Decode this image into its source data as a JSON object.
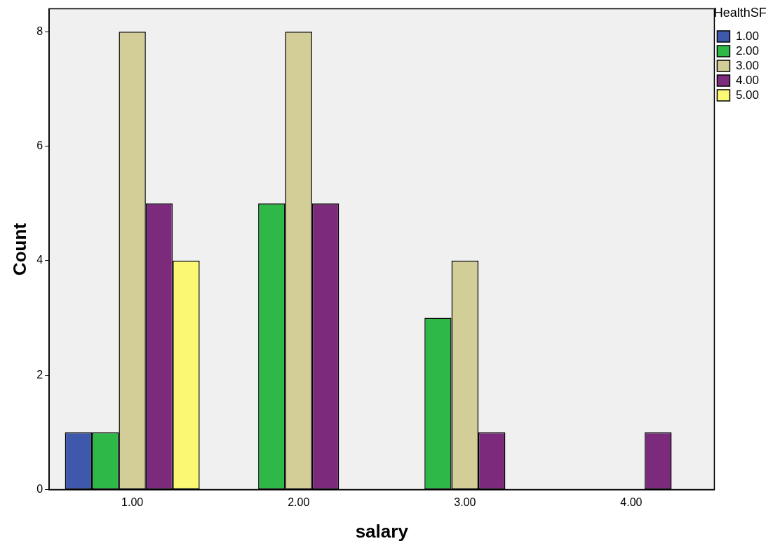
{
  "chart_data": {
    "type": "bar",
    "xlabel": "salary",
    "ylabel": "Count",
    "legend_title": "HealthSF",
    "categories": [
      "1.00",
      "2.00",
      "3.00",
      "4.00"
    ],
    "series": [
      {
        "name": "1.00",
        "color": "#3e58ac",
        "values": [
          1,
          null,
          null,
          null
        ]
      },
      {
        "name": "2.00",
        "color": "#2eb848",
        "values": [
          1,
          5,
          3,
          null
        ]
      },
      {
        "name": "3.00",
        "color": "#d3ce97",
        "values": [
          8,
          8,
          4,
          null
        ]
      },
      {
        "name": "4.00",
        "color": "#7c2a7c",
        "values": [
          5,
          5,
          1,
          1
        ]
      },
      {
        "name": "5.00",
        "color": "#fbf873",
        "values": [
          4,
          null,
          null,
          null
        ]
      }
    ],
    "ylim": [
      0,
      8.4
    ],
    "yticks": [
      0,
      2,
      4,
      6,
      8
    ],
    "grid": false,
    "legend": "top right"
  }
}
